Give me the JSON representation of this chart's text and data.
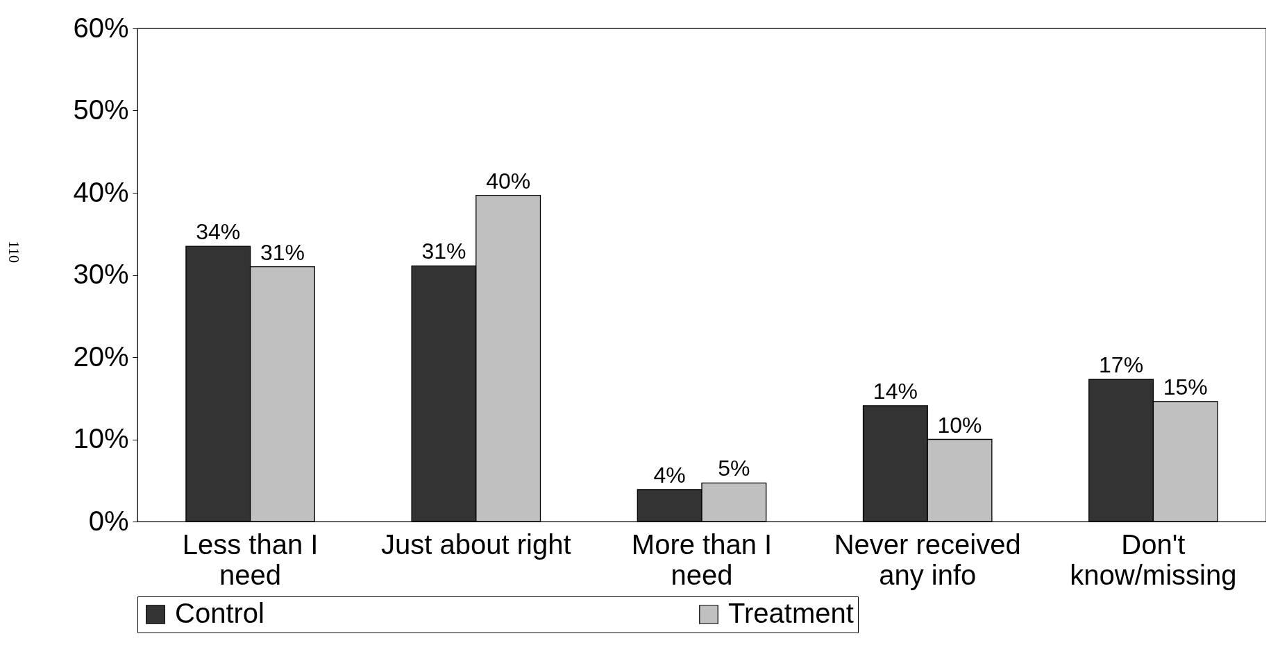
{
  "chart_data": {
    "type": "bar",
    "categories": [
      "Less than I need",
      "Just about right",
      "More than I need",
      "Never received any info",
      "Don't know/missing"
    ],
    "series": [
      {
        "name": "Control",
        "color": "#333333",
        "values": [
          33.5,
          31.1,
          3.9,
          14.1,
          17.3
        ],
        "value_labels": [
          "34%",
          "31%",
          "4%",
          "14%",
          "17%"
        ]
      },
      {
        "name": "Treatment",
        "color": "#c0c0c0",
        "values": [
          31,
          39.7,
          4.7,
          10,
          14.6
        ],
        "value_labels": [
          "31%",
          "40%",
          "5%",
          "10%",
          "15%"
        ]
      }
    ],
    "ylim": [
      0,
      60
    ],
    "yticks": [
      {
        "value": 0,
        "label": "0%"
      },
      {
        "value": 10,
        "label": "10%"
      },
      {
        "value": 20,
        "label": "20%"
      },
      {
        "value": 30,
        "label": "30%"
      },
      {
        "value": 40,
        "label": "40%"
      },
      {
        "value": 50,
        "label": "50%"
      },
      {
        "value": 60,
        "label": "60%"
      }
    ],
    "grid": false,
    "legend": "bottom",
    "annotations": [
      "110"
    ]
  }
}
